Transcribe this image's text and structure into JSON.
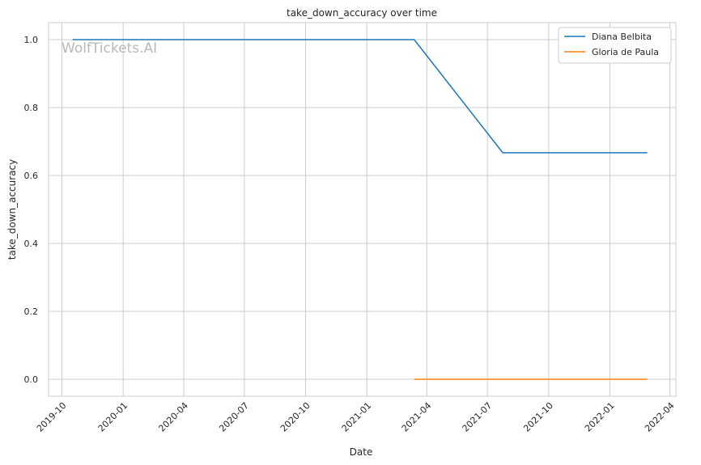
{
  "watermark": "WolfTickets.AI",
  "chart_data": {
    "type": "line",
    "title": "take_down_accuracy over time",
    "xlabel": "Date",
    "ylabel": "take_down_accuracy",
    "x_ticks": [
      "2019-10",
      "2020-01",
      "2020-04",
      "2020-07",
      "2020-10",
      "2021-01",
      "2021-04",
      "2021-07",
      "2021-10",
      "2022-01",
      "2022-04"
    ],
    "y_ticks": [
      "0.0",
      "0.2",
      "0.4",
      "0.6",
      "0.8",
      "1.0"
    ],
    "xlim": [
      "2019-09-11",
      "2022-04-10"
    ],
    "ylim": [
      -0.05,
      1.05
    ],
    "grid": true,
    "legend_position": "top-right",
    "series": [
      {
        "name": "Diana Belbita",
        "color": "#1f77b4",
        "points": [
          {
            "x": "2019-10-17",
            "y": 1.0
          },
          {
            "x": "2021-03-13",
            "y": 1.0
          },
          {
            "x": "2021-07-24",
            "y": 0.667
          },
          {
            "x": "2022-02-26",
            "y": 0.667
          }
        ]
      },
      {
        "name": "Gloria de Paula",
        "color": "#ff7f0e",
        "points": [
          {
            "x": "2021-03-13",
            "y": 0.0
          },
          {
            "x": "2022-02-26",
            "y": 0.0
          }
        ]
      }
    ]
  }
}
